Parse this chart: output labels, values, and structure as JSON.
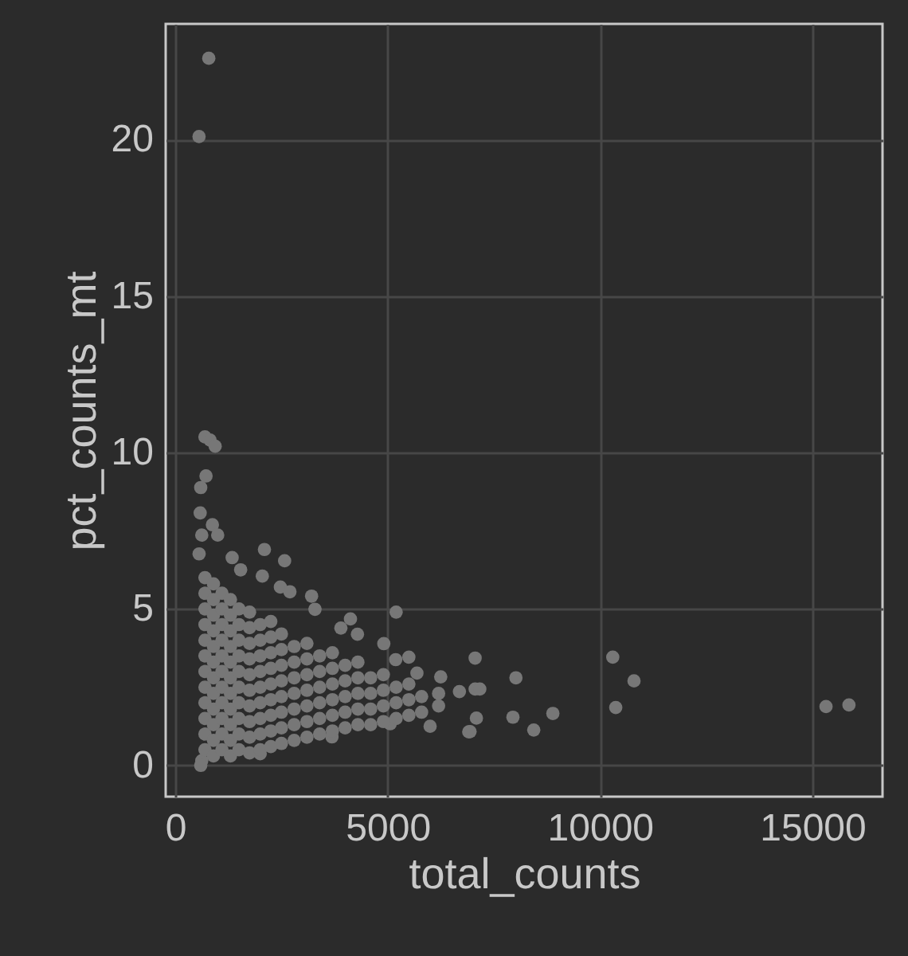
{
  "chart_data": {
    "type": "scatter",
    "xlabel": "total_counts",
    "ylabel": "pct_counts_mt",
    "xlim": [
      -225,
      16650
    ],
    "ylim": [
      -1.0,
      23.7
    ],
    "xticks": [
      0,
      5000,
      10000,
      15000
    ],
    "yticks": [
      0,
      5,
      10,
      15,
      20
    ],
    "grid": true,
    "marker": "circle",
    "series": [
      {
        "color": "#777777",
        "x": [
          560,
          790,
          700,
          820,
          940,
          725,
          600,
          587,
          875,
          625,
          1000,
          562,
          1340,
          2100,
          2575,
          1540,
          2050,
          2475,
          2700,
          3210,
          3290,
          4125,
          5200,
          3900,
          4290,
          4910,
          5190,
          5500,
          5690,
          6250,
          6690,
          7060,
          7060,
          6940,
          6000,
          5060,
          3690,
          2000,
          625,
          600,
          10300,
          10800,
          10370,
          15320,
          15860,
          7170,
          8020,
          7950,
          8890,
          8440,
          6910,
          7090,
          700,
          700,
          700,
          700,
          700,
          700,
          700,
          700,
          700,
          700,
          700,
          700,
          900,
          900,
          900,
          900,
          900,
          900,
          900,
          900,
          900,
          900,
          900,
          900,
          1100,
          1100,
          1100,
          1100,
          1100,
          1100,
          1100,
          1100,
          1100,
          1100,
          1100,
          1300,
          1300,
          1300,
          1300,
          1300,
          1300,
          1300,
          1300,
          1300,
          1300,
          1300,
          1500,
          1500,
          1500,
          1500,
          1500,
          1500,
          1500,
          1500,
          1500,
          1500,
          1750,
          1750,
          1750,
          1750,
          1750,
          1750,
          1750,
          1750,
          1750,
          1750,
          2000,
          2000,
          2000,
          2000,
          2000,
          2000,
          2000,
          2000,
          2000,
          2250,
          2250,
          2250,
          2250,
          2250,
          2250,
          2250,
          2250,
          2250,
          2500,
          2500,
          2500,
          2500,
          2500,
          2500,
          2500,
          2500,
          2800,
          2800,
          2800,
          2800,
          2800,
          2800,
          2800,
          3100,
          3100,
          3100,
          3100,
          3100,
          3100,
          3100,
          3400,
          3400,
          3400,
          3400,
          3400,
          3400,
          3700,
          3700,
          3700,
          3700,
          3700,
          3700,
          4000,
          4000,
          4000,
          4000,
          4000,
          4300,
          4300,
          4300,
          4300,
          4300,
          4600,
          4600,
          4600,
          4600,
          4900,
          4900,
          4900,
          4900,
          5200,
          5200,
          5200,
          5500,
          5500,
          5500,
          5800,
          5800,
          6200,
          6200
        ],
        "values": [
          20.1,
          22.6,
          10.5,
          10.4,
          10.2,
          9.25,
          8.88,
          8.07,
          7.69,
          7.36,
          7.36,
          6.76,
          6.64,
          6.9,
          6.54,
          6.25,
          6.05,
          5.7,
          5.55,
          5.41,
          4.99,
          4.68,
          4.9,
          4.39,
          4.19,
          3.89,
          3.38,
          3.46,
          2.95,
          2.83,
          2.36,
          3.43,
          2.44,
          1.08,
          1.25,
          1.33,
          0.91,
          0.37,
          0.15,
          0.0,
          3.46,
          2.7,
          1.85,
          1.88,
          1.93,
          2.44,
          2.8,
          1.54,
          1.66,
          1.13,
          1.07,
          1.51,
          0.5,
          1,
          1.5,
          2,
          2.5,
          3,
          3.5,
          4,
          4.5,
          5,
          5.5,
          6,
          0.3,
          0.8,
          1.3,
          1.8,
          2.3,
          2.8,
          3.3,
          3.8,
          4.3,
          4.8,
          5.3,
          5.8,
          0.5,
          1,
          1.5,
          2,
          2.5,
          3,
          3.5,
          4,
          4.5,
          5,
          5.5,
          0.3,
          0.8,
          1.3,
          1.8,
          2.3,
          2.8,
          3.3,
          3.8,
          4.3,
          4.8,
          5.3,
          0.5,
          1,
          1.5,
          2,
          2.5,
          3,
          3.5,
          4,
          4.5,
          5,
          0.4,
          0.9,
          1.4,
          1.9,
          2.4,
          2.9,
          3.4,
          3.9,
          4.4,
          4.9,
          0.5,
          1,
          1.5,
          2,
          2.5,
          3,
          3.5,
          4,
          4.5,
          0.6,
          1.1,
          1.6,
          2.1,
          2.6,
          3.1,
          3.6,
          4.1,
          4.6,
          0.7,
          1.2,
          1.7,
          2.2,
          2.7,
          3.2,
          3.7,
          4.2,
          0.8,
          1.3,
          1.8,
          2.3,
          2.8,
          3.3,
          3.8,
          0.9,
          1.4,
          1.9,
          2.4,
          2.9,
          3.4,
          3.9,
          1,
          1.5,
          2,
          2.5,
          3,
          3.5,
          1.1,
          1.6,
          2.1,
          2.6,
          3.1,
          3.6,
          1.2,
          1.7,
          2.2,
          2.7,
          3.2,
          1.3,
          1.8,
          2.3,
          2.8,
          3.3,
          1.3,
          1.8,
          2.3,
          2.8,
          1.4,
          1.9,
          2.4,
          2.9,
          1.5,
          2,
          2.5,
          1.6,
          2.1,
          2.6,
          1.7,
          2.2,
          1.9,
          2.3
        ]
      }
    ]
  }
}
